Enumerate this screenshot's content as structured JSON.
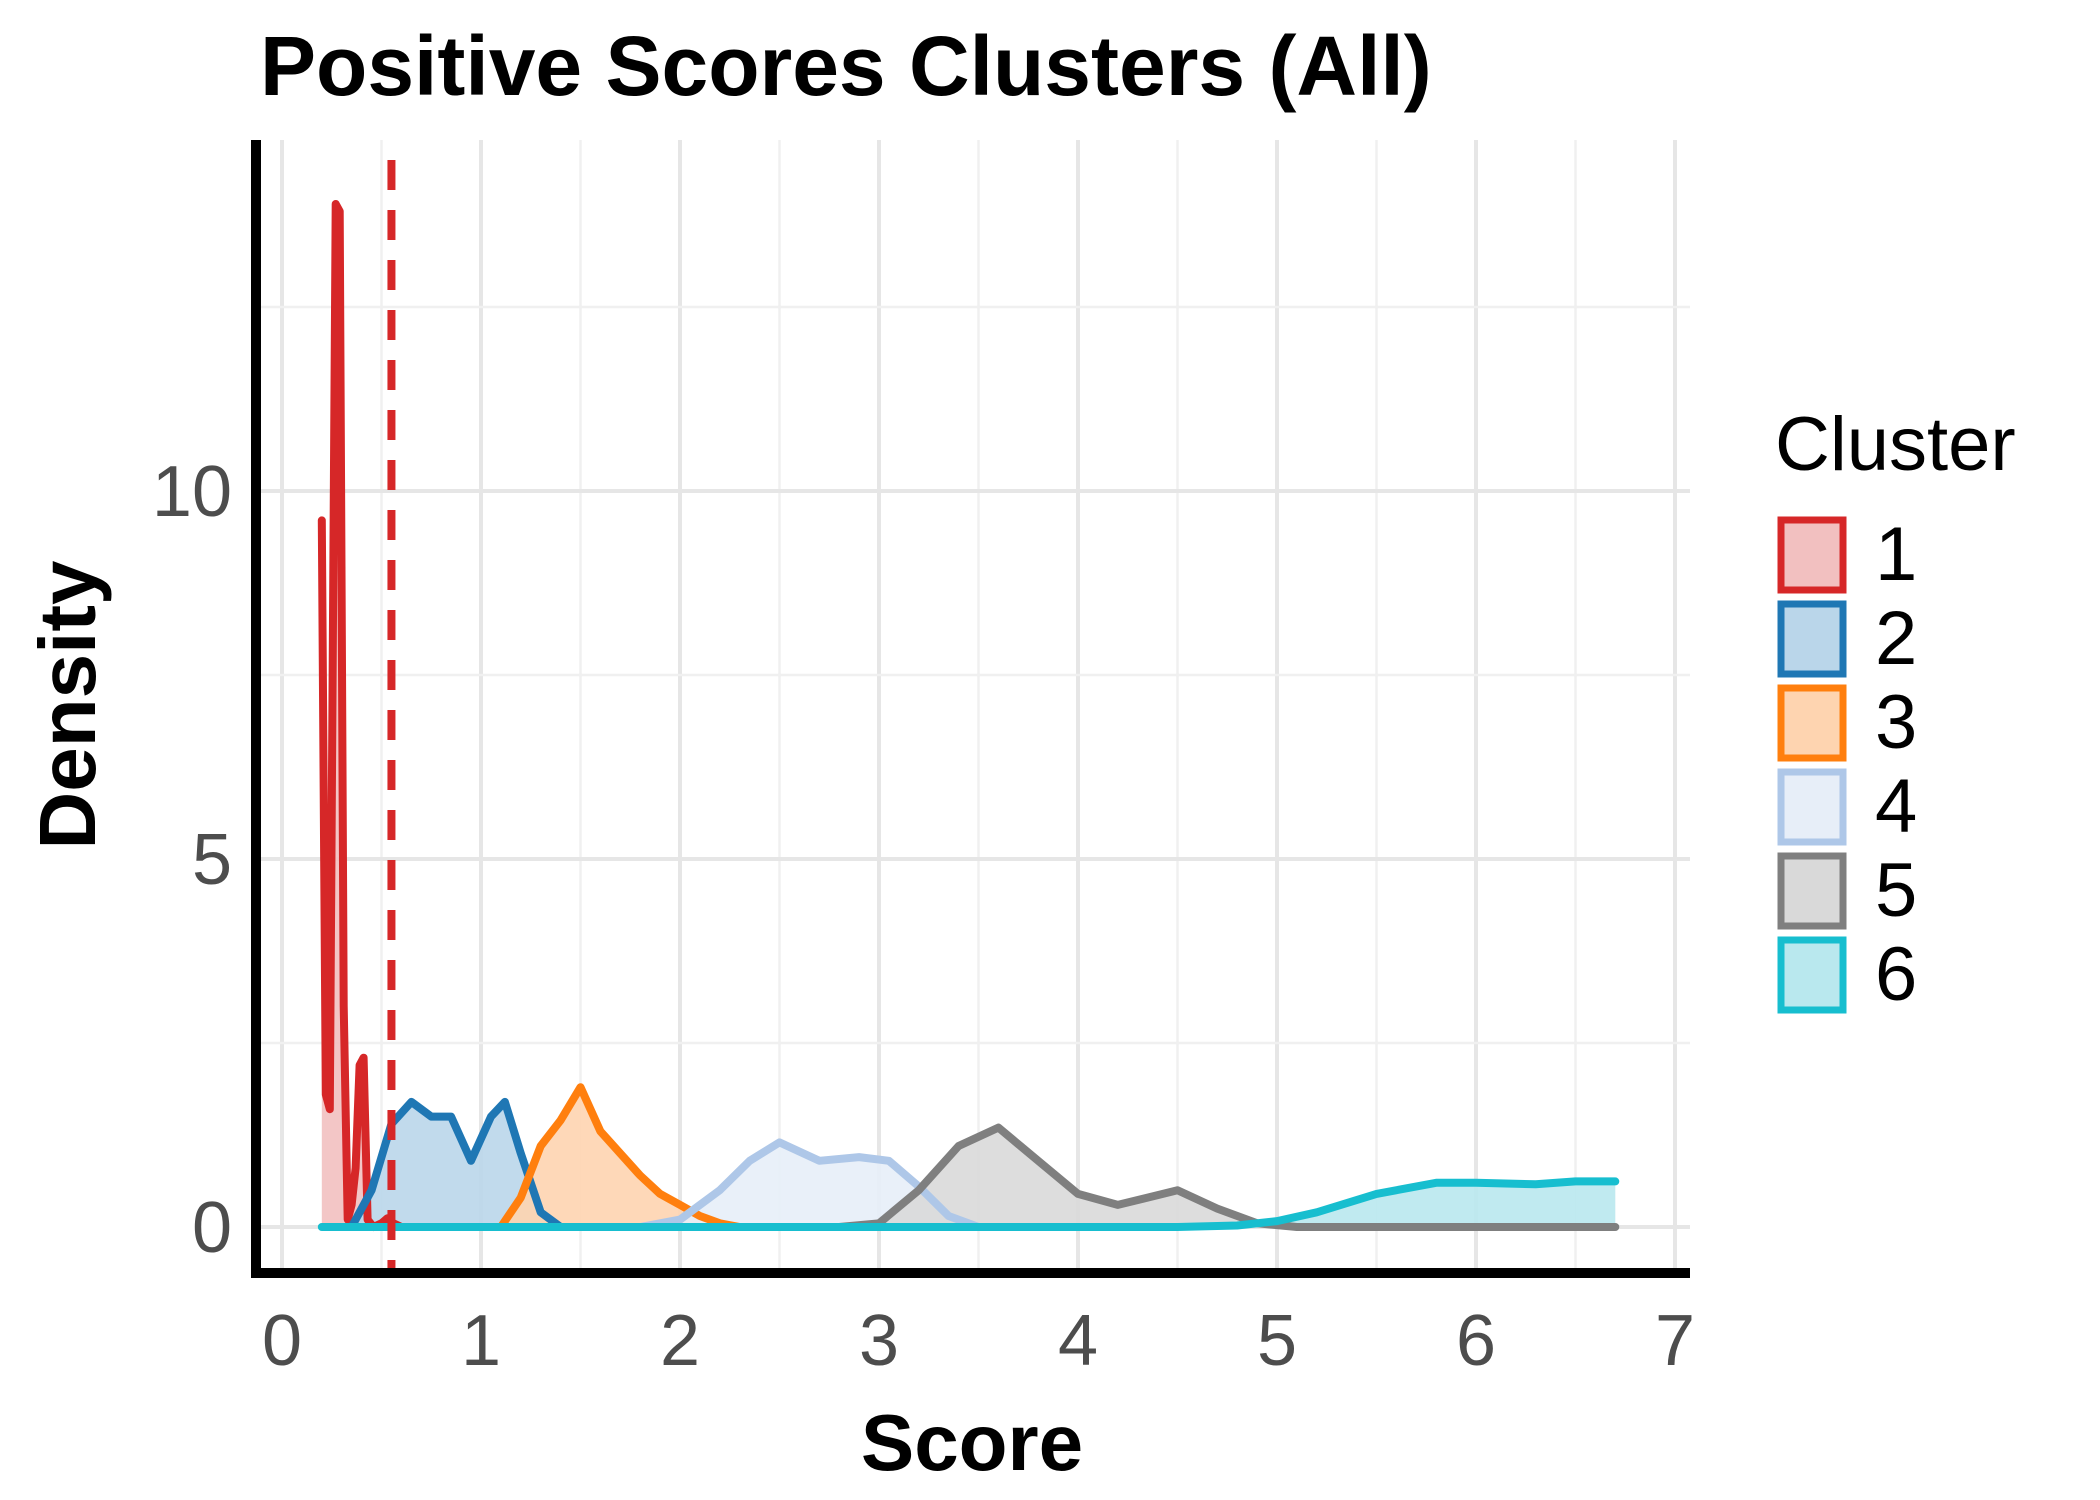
{
  "chart_data": {
    "type": "area",
    "title": "Positive Scores Clusters (All)",
    "xlabel": "Score",
    "ylabel": "Density",
    "xlim": [
      0,
      7
    ],
    "ylim": [
      0,
      13
    ],
    "x_ticks": [
      0,
      1,
      2,
      3,
      4,
      5,
      6,
      7
    ],
    "y_ticks": [
      0,
      5,
      10
    ],
    "grid": true,
    "legend": {
      "title": "Cluster",
      "position": "right"
    },
    "reference_line": {
      "x": 0.55,
      "style": "dashed",
      "color": "#d62728"
    },
    "series": [
      {
        "name": "1",
        "color": "#d62728",
        "fill": "#f2c0c0",
        "x": [
          0.2,
          0.22,
          0.24,
          0.27,
          0.29,
          0.31,
          0.33,
          0.35,
          0.37,
          0.39,
          0.41,
          0.43,
          0.46,
          0.5,
          0.53,
          0.56,
          0.6,
          0.7
        ],
        "y": [
          9.6,
          1.8,
          1.6,
          13.9,
          13.8,
          3.0,
          0.1,
          0.3,
          0.8,
          2.2,
          2.3,
          0.1,
          0.0,
          0.05,
          0.12,
          0.05,
          0.0,
          0.0
        ]
      },
      {
        "name": "2",
        "color": "#1f77b4",
        "fill": "#bad6ea",
        "x": [
          0.35,
          0.45,
          0.55,
          0.65,
          0.75,
          0.85,
          0.95,
          1.05,
          1.12,
          1.2,
          1.3,
          1.4,
          1.5
        ],
        "y": [
          0.0,
          0.5,
          1.4,
          1.7,
          1.5,
          1.5,
          0.9,
          1.5,
          1.7,
          1.0,
          0.2,
          0.0,
          0.0
        ]
      },
      {
        "name": "3",
        "color": "#ff7f0e",
        "fill": "#fed4b0",
        "x": [
          1.1,
          1.2,
          1.3,
          1.4,
          1.5,
          1.6,
          1.7,
          1.8,
          1.9,
          2.0,
          2.1,
          2.2,
          2.3
        ],
        "y": [
          0.0,
          0.4,
          1.1,
          1.45,
          1.9,
          1.3,
          1.0,
          0.7,
          0.45,
          0.3,
          0.15,
          0.05,
          0.0
        ]
      },
      {
        "name": "4",
        "color": "#aec7e8",
        "fill": "#e7eef8",
        "x": [
          1.8,
          2.0,
          2.2,
          2.35,
          2.5,
          2.7,
          2.9,
          3.05,
          3.2,
          3.35,
          3.5
        ],
        "y": [
          0.0,
          0.1,
          0.5,
          0.9,
          1.15,
          0.9,
          0.95,
          0.9,
          0.55,
          0.15,
          0.0
        ]
      },
      {
        "name": "5",
        "color": "#7f7f7f",
        "fill": "#d9d9d9",
        "x": [
          2.8,
          3.0,
          3.2,
          3.4,
          3.6,
          3.8,
          4.0,
          4.2,
          4.5,
          4.7,
          4.9,
          5.1,
          6.7
        ],
        "y": [
          0.0,
          0.05,
          0.5,
          1.1,
          1.35,
          0.9,
          0.45,
          0.3,
          0.5,
          0.25,
          0.05,
          0.0,
          0.0
        ]
      },
      {
        "name": "6",
        "color": "#17becf",
        "fill": "#b9e8ee",
        "x": [
          0.2,
          4.5,
          4.8,
          5.0,
          5.2,
          5.5,
          5.8,
          6.0,
          6.3,
          6.5,
          6.7
        ],
        "y": [
          0.0,
          0.0,
          0.02,
          0.08,
          0.2,
          0.45,
          0.6,
          0.6,
          0.58,
          0.62,
          0.62
        ]
      }
    ]
  }
}
